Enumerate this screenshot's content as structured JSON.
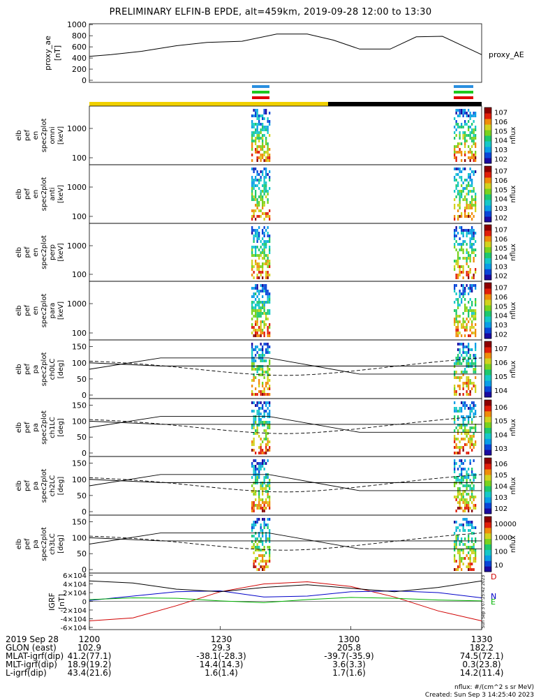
{
  "title": "PRELIMINARY ELFIN-B EPDE, alt=459km, 2019-09-28 12:00 to 13:30",
  "time_ticks": [
    "1200",
    "1230",
    "1300",
    "1330"
  ],
  "footer": {
    "rows": [
      {
        "label": "2019 Sep 28",
        "values": [
          "1200",
          "1230",
          "1300",
          "1330"
        ]
      },
      {
        "label": "GLON (east)",
        "values": [
          "102.9",
          "29.3",
          "205.8",
          "182.2"
        ]
      },
      {
        "label": "MLAT-igrf(dip)",
        "values": [
          "41.2(77.1)",
          "-38.1(-28.3)",
          "-39.7(-35.9)",
          "74.5(72.1)"
        ]
      },
      {
        "label": "MLT-igrf(dip)",
        "values": [
          "18.9(19.2)",
          "14.4(14.3)",
          "3.6(3.3)",
          "0.3(23.8)"
        ]
      },
      {
        "label": "L-igrf(dip)",
        "values": [
          "43.4(21.6)",
          "1.6(1.4)",
          "1.7(1.6)",
          "14.2(11.4)"
        ]
      }
    ],
    "units_note": "nflux: #/(cm^2 s sr MeV)",
    "created": "Created: Sun Sep  3 14:25:40 2023",
    "side_stamp": "Sun Sep  3 07:25:42 2023"
  },
  "colors": {
    "sunlit_bar": "#f0d000",
    "shadow_bar": "#000000",
    "segment_marks": [
      "#2a8fe0",
      "#1ec81e",
      "#e00000"
    ],
    "igrf_D": "#d00000",
    "igrf_N": "#0000c8",
    "igrf_E": "#00b400"
  },
  "chart_data": [
    {
      "type": "line",
      "ylabel": "proxy_ae [nT]",
      "legend": "proxy_AE",
      "ylim": [
        0,
        1000
      ],
      "yticks": [
        "0",
        "200",
        "400",
        "600",
        "800",
        "1000"
      ],
      "x_minutes": [
        0,
        5,
        12,
        20,
        27,
        35,
        43,
        50,
        56,
        62,
        69,
        75,
        81,
        90
      ],
      "values": [
        430,
        460,
        520,
        620,
        680,
        700,
        830,
        830,
        720,
        560,
        560,
        780,
        790,
        460
      ]
    },
    {
      "type": "heatmap",
      "ylabel": "elb pef en spec2plot omni [keV]",
      "yticks": [
        "100",
        "1000"
      ],
      "colorbar_label": "nflux",
      "colorbar_ticks": [
        "10^2",
        "10^3",
        "10^4",
        "10^5",
        "10^6",
        "10^7"
      ]
    },
    {
      "type": "heatmap",
      "ylabel": "elb pef en spec2plot anti [keV]",
      "yticks": [
        "100",
        "1000"
      ],
      "colorbar_label": "nflux",
      "colorbar_ticks": [
        "10^2",
        "10^3",
        "10^4",
        "10^5",
        "10^6",
        "10^7"
      ]
    },
    {
      "type": "heatmap",
      "ylabel": "elb pef en spec2plot perp [keV]",
      "yticks": [
        "100",
        "1000"
      ],
      "colorbar_label": "nflux",
      "colorbar_ticks": [
        "10^2",
        "10^3",
        "10^4",
        "10^5",
        "10^6",
        "10^7"
      ]
    },
    {
      "type": "heatmap",
      "ylabel": "elb pef en spec2plot para [keV]",
      "yticks": [
        "100",
        "1000"
      ],
      "colorbar_label": "nflux",
      "colorbar_ticks": [
        "10^2",
        "10^3",
        "10^4",
        "10^5",
        "10^6",
        "10^7"
      ]
    },
    {
      "type": "heatmap",
      "ylabel": "elb pef pa spec2plot ch0LC [deg]",
      "yticks": [
        "0",
        "50",
        "100",
        "150"
      ],
      "colorbar_label": "nflux",
      "colorbar_ticks": [
        "10^4",
        "10^5",
        "10^6",
        "10^7"
      ]
    },
    {
      "type": "heatmap",
      "ylabel": "elb pef pa spec2plot ch1LC [deg]",
      "yticks": [
        "0",
        "50",
        "100",
        "150"
      ],
      "colorbar_label": "nflux",
      "colorbar_ticks": [
        "10^3",
        "10^4",
        "10^5",
        "10^6"
      ]
    },
    {
      "type": "heatmap",
      "ylabel": "elb pef pa spec2plot ch2LC [deg]",
      "yticks": [
        "0",
        "50",
        "100",
        "150"
      ],
      "colorbar_label": "nflux",
      "colorbar_ticks": [
        "10^2",
        "10^3",
        "10^4",
        "10^5",
        "10^6"
      ]
    },
    {
      "type": "heatmap",
      "ylabel": "elb pef pa spec2plot ch3LC [deg]",
      "yticks": [
        "0",
        "50",
        "100",
        "150"
      ],
      "colorbar_label": "nflux",
      "colorbar_ticks": [
        "10",
        "100",
        "1000",
        "10000"
      ]
    },
    {
      "type": "line",
      "ylabel": "IGRF [nT]",
      "ylim": [
        -65000,
        65000
      ],
      "yticks": [
        "6×10^4",
        "4×10^4",
        "2×10^4",
        "0",
        "-2×10^4",
        "-4×10^4",
        "-6×10^4"
      ],
      "series": [
        {
          "name": "D",
          "x_minutes": [
            0,
            10,
            20,
            30,
            40,
            50,
            60,
            70,
            80,
            90
          ],
          "values": [
            -45000,
            -38000,
            -10000,
            22000,
            40000,
            45000,
            34000,
            10000,
            -22000,
            -45000
          ]
        },
        {
          "name": "N",
          "x_minutes": [
            0,
            10,
            20,
            30,
            40,
            50,
            60,
            70,
            80,
            90
          ],
          "values": [
            2000,
            12000,
            22000,
            24000,
            10000,
            12000,
            22000,
            24000,
            20000,
            8000
          ]
        },
        {
          "name": "E",
          "x_minutes": [
            0,
            10,
            20,
            30,
            40,
            50,
            60,
            70,
            80,
            90
          ],
          "values": [
            4000,
            8000,
            7000,
            1000,
            -3000,
            4000,
            9000,
            7000,
            3000,
            1000
          ]
        },
        {
          "name": "",
          "x_minutes": [
            0,
            10,
            20,
            30,
            40,
            50,
            60,
            70,
            80,
            90
          ],
          "values": [
            47000,
            42000,
            28000,
            22000,
            32000,
            38000,
            30000,
            22000,
            32000,
            47000
          ]
        }
      ]
    }
  ]
}
